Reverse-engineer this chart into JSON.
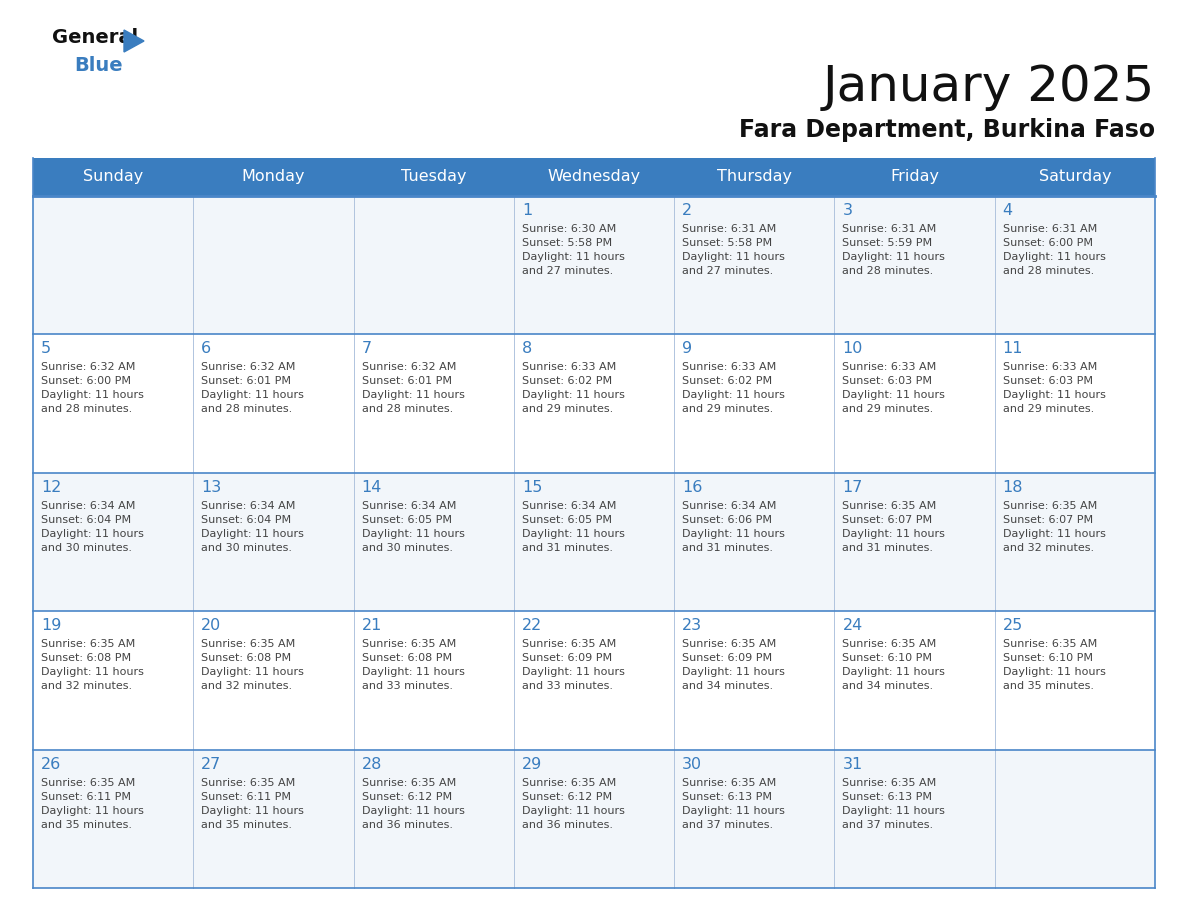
{
  "title": "January 2025",
  "subtitle": "Fara Department, Burkina Faso",
  "days_of_week": [
    "Sunday",
    "Monday",
    "Tuesday",
    "Wednesday",
    "Thursday",
    "Friday",
    "Saturday"
  ],
  "header_bg": "#3a7dbf",
  "header_text": "#ffffff",
  "row_bg_odd": "#f2f6fa",
  "row_bg_even": "#ffffff",
  "border_color": "#4a86c8",
  "grid_line_color": "#b0c4de",
  "day_number_color": "#3a7dbf",
  "text_color": "#444444",
  "calendar_data": [
    [
      {
        "day": null,
        "info": null
      },
      {
        "day": null,
        "info": null
      },
      {
        "day": null,
        "info": null
      },
      {
        "day": 1,
        "info": "Sunrise: 6:30 AM\nSunset: 5:58 PM\nDaylight: 11 hours\nand 27 minutes."
      },
      {
        "day": 2,
        "info": "Sunrise: 6:31 AM\nSunset: 5:58 PM\nDaylight: 11 hours\nand 27 minutes."
      },
      {
        "day": 3,
        "info": "Sunrise: 6:31 AM\nSunset: 5:59 PM\nDaylight: 11 hours\nand 28 minutes."
      },
      {
        "day": 4,
        "info": "Sunrise: 6:31 AM\nSunset: 6:00 PM\nDaylight: 11 hours\nand 28 minutes."
      }
    ],
    [
      {
        "day": 5,
        "info": "Sunrise: 6:32 AM\nSunset: 6:00 PM\nDaylight: 11 hours\nand 28 minutes."
      },
      {
        "day": 6,
        "info": "Sunrise: 6:32 AM\nSunset: 6:01 PM\nDaylight: 11 hours\nand 28 minutes."
      },
      {
        "day": 7,
        "info": "Sunrise: 6:32 AM\nSunset: 6:01 PM\nDaylight: 11 hours\nand 28 minutes."
      },
      {
        "day": 8,
        "info": "Sunrise: 6:33 AM\nSunset: 6:02 PM\nDaylight: 11 hours\nand 29 minutes."
      },
      {
        "day": 9,
        "info": "Sunrise: 6:33 AM\nSunset: 6:02 PM\nDaylight: 11 hours\nand 29 minutes."
      },
      {
        "day": 10,
        "info": "Sunrise: 6:33 AM\nSunset: 6:03 PM\nDaylight: 11 hours\nand 29 minutes."
      },
      {
        "day": 11,
        "info": "Sunrise: 6:33 AM\nSunset: 6:03 PM\nDaylight: 11 hours\nand 29 minutes."
      }
    ],
    [
      {
        "day": 12,
        "info": "Sunrise: 6:34 AM\nSunset: 6:04 PM\nDaylight: 11 hours\nand 30 minutes."
      },
      {
        "day": 13,
        "info": "Sunrise: 6:34 AM\nSunset: 6:04 PM\nDaylight: 11 hours\nand 30 minutes."
      },
      {
        "day": 14,
        "info": "Sunrise: 6:34 AM\nSunset: 6:05 PM\nDaylight: 11 hours\nand 30 minutes."
      },
      {
        "day": 15,
        "info": "Sunrise: 6:34 AM\nSunset: 6:05 PM\nDaylight: 11 hours\nand 31 minutes."
      },
      {
        "day": 16,
        "info": "Sunrise: 6:34 AM\nSunset: 6:06 PM\nDaylight: 11 hours\nand 31 minutes."
      },
      {
        "day": 17,
        "info": "Sunrise: 6:35 AM\nSunset: 6:07 PM\nDaylight: 11 hours\nand 31 minutes."
      },
      {
        "day": 18,
        "info": "Sunrise: 6:35 AM\nSunset: 6:07 PM\nDaylight: 11 hours\nand 32 minutes."
      }
    ],
    [
      {
        "day": 19,
        "info": "Sunrise: 6:35 AM\nSunset: 6:08 PM\nDaylight: 11 hours\nand 32 minutes."
      },
      {
        "day": 20,
        "info": "Sunrise: 6:35 AM\nSunset: 6:08 PM\nDaylight: 11 hours\nand 32 minutes."
      },
      {
        "day": 21,
        "info": "Sunrise: 6:35 AM\nSunset: 6:08 PM\nDaylight: 11 hours\nand 33 minutes."
      },
      {
        "day": 22,
        "info": "Sunrise: 6:35 AM\nSunset: 6:09 PM\nDaylight: 11 hours\nand 33 minutes."
      },
      {
        "day": 23,
        "info": "Sunrise: 6:35 AM\nSunset: 6:09 PM\nDaylight: 11 hours\nand 34 minutes."
      },
      {
        "day": 24,
        "info": "Sunrise: 6:35 AM\nSunset: 6:10 PM\nDaylight: 11 hours\nand 34 minutes."
      },
      {
        "day": 25,
        "info": "Sunrise: 6:35 AM\nSunset: 6:10 PM\nDaylight: 11 hours\nand 35 minutes."
      }
    ],
    [
      {
        "day": 26,
        "info": "Sunrise: 6:35 AM\nSunset: 6:11 PM\nDaylight: 11 hours\nand 35 minutes."
      },
      {
        "day": 27,
        "info": "Sunrise: 6:35 AM\nSunset: 6:11 PM\nDaylight: 11 hours\nand 35 minutes."
      },
      {
        "day": 28,
        "info": "Sunrise: 6:35 AM\nSunset: 6:12 PM\nDaylight: 11 hours\nand 36 minutes."
      },
      {
        "day": 29,
        "info": "Sunrise: 6:35 AM\nSunset: 6:12 PM\nDaylight: 11 hours\nand 36 minutes."
      },
      {
        "day": 30,
        "info": "Sunrise: 6:35 AM\nSunset: 6:13 PM\nDaylight: 11 hours\nand 37 minutes."
      },
      {
        "day": 31,
        "info": "Sunrise: 6:35 AM\nSunset: 6:13 PM\nDaylight: 11 hours\nand 37 minutes."
      },
      {
        "day": null,
        "info": null
      }
    ]
  ]
}
